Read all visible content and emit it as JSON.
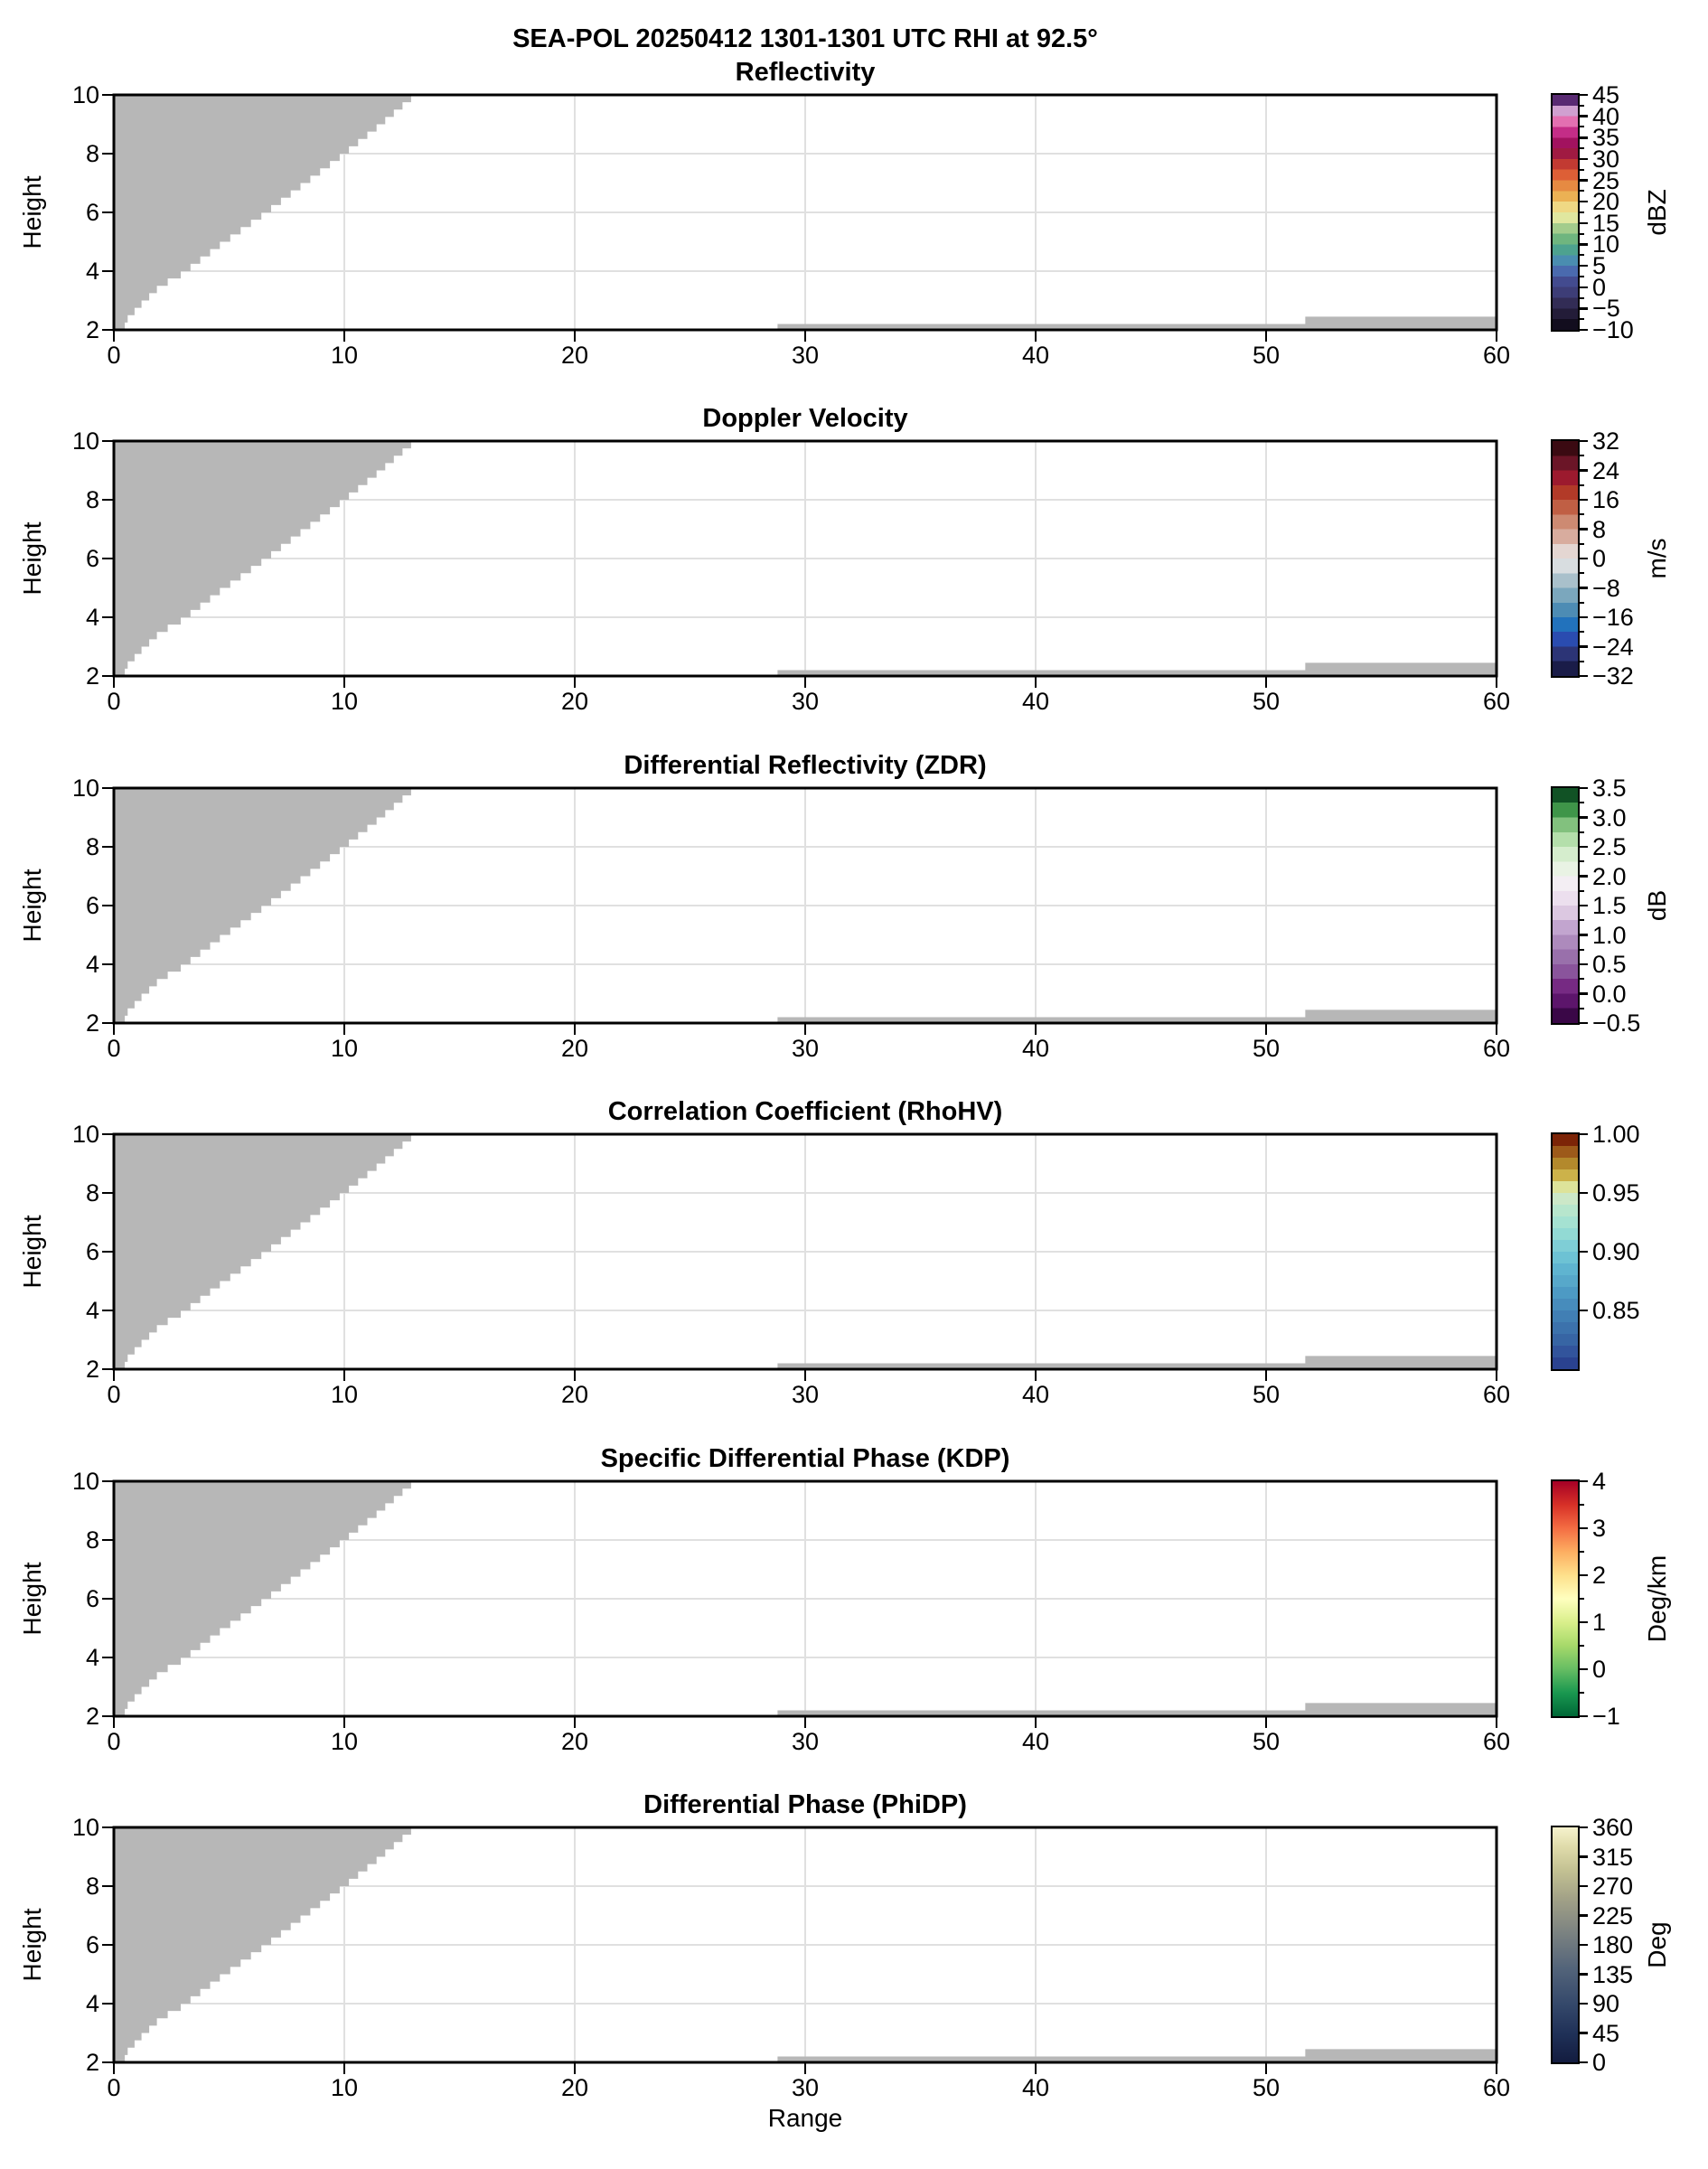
{
  "title": "SEA-POL 20250412 1301-1301 UTC RHI at 92.5°",
  "chart_data": {
    "type": "heatmap",
    "subtype": "radar-RHI-multipanel",
    "xlabel": "Range",
    "ylabel": "Height",
    "xlim": [
      0,
      60
    ],
    "ylim": [
      2,
      10
    ],
    "xticks": [
      0,
      10,
      20,
      30,
      40,
      50,
      60
    ],
    "xtick_labels": [
      "0",
      "10",
      "20",
      "30",
      "40",
      "50",
      "60"
    ],
    "yticks": [
      2,
      4,
      6,
      8,
      10
    ],
    "ytick_labels": [
      "2",
      "4",
      "6",
      "8",
      "10"
    ],
    "grid": true,
    "grid_color": "#e0e0e0",
    "background_color": "#ffffff",
    "masked_regions": {
      "color": "#b7b7b7",
      "description": "gray no-data wedge upper-left and thin gray strips along bottom, identical in all six panels",
      "wedge_boundary_points": [
        [
          0.35,
          2
        ],
        [
          0.6,
          2.5
        ],
        [
          1.2,
          3
        ],
        [
          2.0,
          3.6
        ],
        [
          2.9,
          4
        ],
        [
          4.6,
          5
        ],
        [
          6.4,
          6
        ],
        [
          8.1,
          7
        ],
        [
          9.8,
          8
        ],
        [
          11.4,
          9
        ],
        [
          12.9,
          10
        ]
      ],
      "wedge_step_height": 0.25,
      "bottom_strip": {
        "x": [
          28.8,
          60
        ],
        "y": [
          2,
          2.2
        ]
      },
      "bottom_strip_far": {
        "x": [
          51.7,
          60
        ],
        "y": [
          2,
          2.45
        ]
      }
    },
    "panels": [
      {
        "id": "reflectivity",
        "title": "Reflectivity",
        "units": "dBZ",
        "vmin": -10,
        "vmax": 45,
        "tick_values": [
          45,
          40,
          35,
          30,
          25,
          20,
          15,
          10,
          5,
          0,
          -5,
          -10
        ],
        "tick_labels": [
          "45",
          "40",
          "35",
          "30",
          "25",
          "20",
          "15",
          "10",
          "5",
          "0",
          "−5",
          "−10"
        ],
        "minor_step": 2.5,
        "colorbar": {
          "style": "discrete",
          "bands": [
            "#120d1e",
            "#231c38",
            "#322c55",
            "#3d3d77",
            "#434b8f",
            "#4a6aae",
            "#4a8db0",
            "#4da28f",
            "#6fb57f",
            "#a3cc8c",
            "#e0e79f",
            "#efd884",
            "#ebb154",
            "#e68a42",
            "#dd5f36",
            "#c23a32",
            "#a01a42",
            "#a2125f",
            "#c42d87",
            "#e370b1",
            "#d0a0d0",
            "#592a72"
          ]
        }
      },
      {
        "id": "doppler-velocity",
        "title": "Doppler Velocity",
        "units": "m/s",
        "vmin": -32,
        "vmax": 32,
        "tick_values": [
          32,
          24,
          16,
          8,
          0,
          -8,
          -16,
          -24,
          -32
        ],
        "tick_labels": [
          "32",
          "24",
          "16",
          "8",
          "0",
          "−8",
          "−16",
          "−24",
          "−32"
        ],
        "minor_step": 4,
        "colorbar": {
          "style": "discrete",
          "bands": [
            "#1a1c48",
            "#2c3476",
            "#2a4cb0",
            "#2272bc",
            "#4d8cb4",
            "#7ba7bd",
            "#a9c0cb",
            "#d8dde0",
            "#e4d6d2",
            "#d8ac9e",
            "#cd8a72",
            "#c05f44",
            "#b23a28",
            "#9c1a2e",
            "#6b1527",
            "#3b0a12"
          ]
        }
      },
      {
        "id": "zdr",
        "title": "Differential Reflectivity (ZDR)",
        "units": "dB",
        "vmin": -0.5,
        "vmax": 3.5,
        "tick_values": [
          3.5,
          3.0,
          2.5,
          2.0,
          1.5,
          1.0,
          0.5,
          0.0,
          -0.5
        ],
        "tick_labels": [
          "3.5",
          "3.0",
          "2.5",
          "2.0",
          "1.5",
          "1.0",
          "0.5",
          "0.0",
          "−0.5"
        ],
        "minor_step": 0.25,
        "colorbar": {
          "style": "discrete",
          "bands": [
            "#3a0747",
            "#5c156b",
            "#762a83",
            "#8a549c",
            "#9970ab",
            "#ad8abc",
            "#c2a5cf",
            "#dcc8e1",
            "#ecdfee",
            "#f3eef3",
            "#e9f3e4",
            "#d5edcd",
            "#b4dfab",
            "#82c17e",
            "#3f9549",
            "#115225"
          ]
        }
      },
      {
        "id": "rhohv",
        "title": "Correlation Coefficient (RhoHV)",
        "units": "",
        "vmin": 0.8,
        "vmax": 1.0,
        "tick_values": [
          1.0,
          0.95,
          0.9,
          0.85
        ],
        "tick_labels": [
          "1.00",
          "0.95",
          "0.90",
          "0.85"
        ],
        "minor_step": null,
        "colorbar": {
          "style": "discrete",
          "bands": [
            "#2a4290",
            "#32549c",
            "#3765a4",
            "#3c72ac",
            "#417fb4",
            "#478cbc",
            "#4d9ac4",
            "#57a8ca",
            "#5fb4d0",
            "#6dc2d4",
            "#7fced6",
            "#92dad4",
            "#a5e2d2",
            "#b7e6cd",
            "#cce8c8",
            "#dde39a",
            "#ccb24a",
            "#b3892c",
            "#9d5a1a",
            "#7c2407"
          ]
        }
      },
      {
        "id": "kdp",
        "title": "Specific Differential Phase (KDP)",
        "units": "Deg/km",
        "vmin": -1,
        "vmax": 4,
        "tick_values": [
          4,
          3,
          2,
          1,
          0,
          -1
        ],
        "tick_labels": [
          "4",
          "3",
          "2",
          "1",
          "0",
          "−1"
        ],
        "minor_step": 0.5,
        "colorbar": {
          "style": "gradient",
          "stops": [
            [
              0,
              "#006837"
            ],
            [
              0.1,
              "#1a9850"
            ],
            [
              0.2,
              "#66bd63"
            ],
            [
              0.3,
              "#a6d96a"
            ],
            [
              0.4,
              "#d9ef8b"
            ],
            [
              0.5,
              "#ffffbf"
            ],
            [
              0.6,
              "#fee08b"
            ],
            [
              0.7,
              "#fdae61"
            ],
            [
              0.8,
              "#f46d43"
            ],
            [
              0.9,
              "#d73027"
            ],
            [
              1,
              "#a50026"
            ]
          ]
        }
      },
      {
        "id": "phidp",
        "title": "Differential Phase (PhiDP)",
        "units": "Deg",
        "vmin": 0,
        "vmax": 360,
        "tick_values": [
          360,
          315,
          270,
          225,
          180,
          135,
          90,
          45,
          0
        ],
        "tick_labels": [
          "360",
          "315",
          "270",
          "225",
          "180",
          "135",
          "90",
          "45",
          "0"
        ],
        "minor_step": null,
        "colorbar": {
          "style": "gradient",
          "stops": [
            [
              0,
              "#131c3f"
            ],
            [
              0.12,
              "#1f3057"
            ],
            [
              0.25,
              "#35496b"
            ],
            [
              0.4,
              "#53647a"
            ],
            [
              0.55,
              "#7b8281"
            ],
            [
              0.7,
              "#a3a287"
            ],
            [
              0.82,
              "#c4c293"
            ],
            [
              0.92,
              "#e0dcab"
            ],
            [
              1,
              "#f6f2cd"
            ]
          ]
        }
      }
    ]
  }
}
